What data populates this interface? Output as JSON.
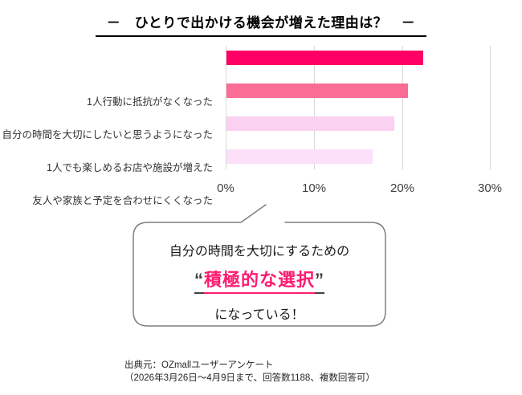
{
  "title": {
    "text": "－　ひとりで出かける機会が増えた理由は？　－"
  },
  "chart_data": {
    "type": "bar",
    "orientation": "horizontal",
    "title": "ひとりで出かける機会が増えた理由は？",
    "categories": [
      "1人行動に抵抗がなくなった",
      "自分の時間を大切にしたいと思うようになった",
      "1人でも楽しめるお店や施設が増えた",
      "友人や家族と予定を合わせにくくなった"
    ],
    "values": [
      22.3,
      20.5,
      19.0,
      16.5
    ],
    "unit": "%",
    "xlim": [
      0,
      30
    ],
    "x_ticks": [
      "0%",
      "10%",
      "20%",
      "30%"
    ],
    "bar_colors": [
      "#ff0066",
      "#fa6e96",
      "#fbd1f2",
      "#fcdff8"
    ],
    "gridline_color": "#d9d9d9",
    "grid": true,
    "legend": false
  },
  "callout": {
    "line1": "自分の時間を大切にするための",
    "quote_open": "“",
    "highlight": "積極的な選択",
    "quote_close": "”",
    "line3": "になっている！",
    "highlight_color": "#ff1a70",
    "border_color": "#7f7f7f"
  },
  "source": {
    "line1": "出典元：OZmallユーザーアンケート",
    "line2": "（2026年3月26日～4月9日まで、回答数1188、複数回答可）"
  }
}
